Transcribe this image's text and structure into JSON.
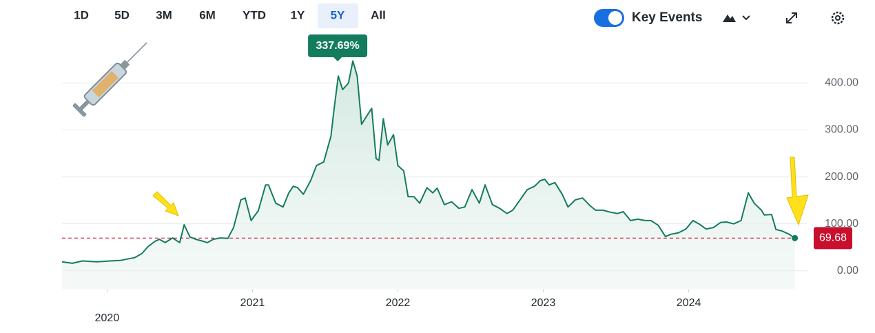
{
  "toolbar": {
    "ranges": [
      {
        "label": "1D",
        "selected": false
      },
      {
        "label": "5D",
        "selected": false
      },
      {
        "label": "3M",
        "selected": false
      },
      {
        "label": "6M",
        "selected": false
      },
      {
        "label": "YTD",
        "selected": false
      },
      {
        "label": "1Y",
        "selected": false
      },
      {
        "label": "5Y",
        "selected": true
      },
      {
        "label": "All",
        "selected": false
      }
    ],
    "key_events": {
      "label": "Key Events",
      "on": true
    }
  },
  "chart_data": {
    "type": "line",
    "color": "#137c5c",
    "fill": "#e3f1ec",
    "grid": true,
    "annotation": "337.69%",
    "price_line": 69.68,
    "price_line_color": "#c8102e",
    "x": [
      2019.69,
      2019.76,
      2019.83,
      2019.93,
      2020.02,
      2020.09,
      2020.14,
      2020.19,
      2020.24,
      2020.28,
      2020.33,
      2020.36,
      2020.4,
      2020.45,
      2020.5,
      2020.53,
      2020.57,
      2020.61,
      2020.66,
      2020.69,
      2020.73,
      2020.78,
      2020.83,
      2020.87,
      2020.92,
      2020.95,
      2020.99,
      2021.04,
      2021.09,
      2021.11,
      2021.16,
      2021.21,
      2021.25,
      2021.28,
      2021.31,
      2021.35,
      2021.4,
      2021.44,
      2021.49,
      2021.54,
      2021.56,
      2021.59,
      2021.62,
      2021.66,
      2021.69,
      2021.72,
      2021.75,
      2021.78,
      2021.82,
      2021.85,
      2021.87,
      2021.9,
      2021.93,
      2021.97,
      2022.0,
      2022.04,
      2022.07,
      2022.11,
      2022.15,
      2022.2,
      2022.24,
      2022.27,
      2022.32,
      2022.37,
      2022.42,
      2022.46,
      2022.51,
      2022.56,
      2022.6,
      2022.65,
      2022.7,
      2022.75,
      2022.79,
      2022.84,
      2022.89,
      2022.94,
      2022.98,
      2023.01,
      2023.04,
      2023.08,
      2023.13,
      2023.17,
      2023.22,
      2023.27,
      2023.32,
      2023.36,
      2023.41,
      2023.46,
      2023.51,
      2023.55,
      2023.6,
      2023.65,
      2023.7,
      2023.74,
      2023.79,
      2023.84,
      2023.88,
      2023.93,
      2023.98,
      2024.03,
      2024.07,
      2024.12,
      2024.17,
      2024.22,
      2024.26,
      2024.31,
      2024.36,
      2024.41,
      2024.45,
      2024.5,
      2024.52,
      2024.57,
      2024.6,
      2024.64,
      2024.69,
      2024.73
    ],
    "values": [
      19,
      16,
      21,
      19,
      21,
      22,
      25,
      28,
      37,
      51,
      63,
      67,
      60,
      70,
      60,
      98,
      72,
      67,
      63,
      60,
      67,
      70,
      69,
      92,
      151,
      155,
      107,
      128,
      183,
      183,
      144,
      136,
      166,
      180,
      177,
      163,
      192,
      224,
      232,
      287,
      342,
      415,
      386,
      400,
      447,
      415,
      312,
      327,
      346,
      239,
      235,
      324,
      268,
      290,
      224,
      213,
      158,
      158,
      144,
      177,
      166,
      176,
      141,
      147,
      133,
      136,
      173,
      144,
      183,
      141,
      133,
      122,
      129,
      151,
      173,
      180,
      192,
      195,
      183,
      188,
      163,
      136,
      151,
      155,
      139,
      129,
      129,
      125,
      122,
      126,
      107,
      110,
      107,
      107,
      97,
      73,
      78,
      81,
      89,
      107,
      100,
      89,
      92,
      103,
      104,
      100,
      107,
      166,
      144,
      129,
      119,
      120,
      88,
      85,
      78,
      69.68
    ],
    "xlim": [
      2019.69,
      2024.76
    ],
    "xticks": [
      2020,
      2021,
      2022,
      2023,
      2024
    ],
    "ylim": [
      -40,
      452
    ],
    "yticks": [
      {
        "value": 0,
        "label": "0.00"
      },
      {
        "value": 100,
        "label": "100.00"
      },
      {
        "value": 200,
        "label": "200.00"
      },
      {
        "value": 300,
        "label": "300.00"
      },
      {
        "value": 400,
        "label": "400.00"
      }
    ]
  }
}
